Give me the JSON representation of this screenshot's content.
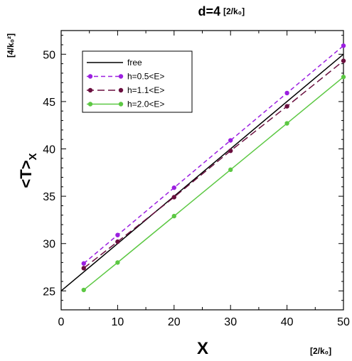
{
  "chart_data": {
    "type": "line",
    "title": "d=4",
    "title_unit": "[2/k₀]",
    "xlabel": "X",
    "xlabel_unit": "[2/k₀]",
    "ylabel": "<T>",
    "ylabel_sub": "X",
    "ylabel_unit": "[4/k₀²]",
    "xlim": [
      0,
      50
    ],
    "ylim": [
      23,
      52.5
    ],
    "xticks": [
      0,
      10,
      20,
      30,
      40,
      50
    ],
    "yticks": [
      25,
      30,
      35,
      40,
      45,
      50
    ],
    "grid": false,
    "legend_position": "top-left",
    "series": [
      {
        "name": "free",
        "style": "solid",
        "color": "#000000",
        "markers": false,
        "x": [
          0,
          50
        ],
        "y": [
          25.0,
          50.0
        ]
      },
      {
        "name": "h=0.5<E>",
        "style": "dashed",
        "color": "#9b1fe0",
        "markers": true,
        "x": [
          4,
          10,
          20,
          30,
          40,
          50
        ],
        "y": [
          27.9,
          30.9,
          35.9,
          40.9,
          45.9,
          50.9
        ]
      },
      {
        "name": "h=1.1<E>",
        "style": "longdash",
        "color": "#6a0f3f",
        "markers": true,
        "x": [
          4,
          10,
          20,
          30,
          40,
          50
        ],
        "y": [
          27.4,
          30.2,
          34.9,
          39.8,
          44.5,
          49.3
        ]
      },
      {
        "name": "h=2.0<E>",
        "style": "solid",
        "color": "#5cc843",
        "markers": true,
        "x": [
          4,
          10,
          20,
          30,
          40,
          50
        ],
        "y": [
          25.1,
          28.0,
          32.9,
          37.8,
          42.7,
          47.6
        ]
      }
    ]
  }
}
